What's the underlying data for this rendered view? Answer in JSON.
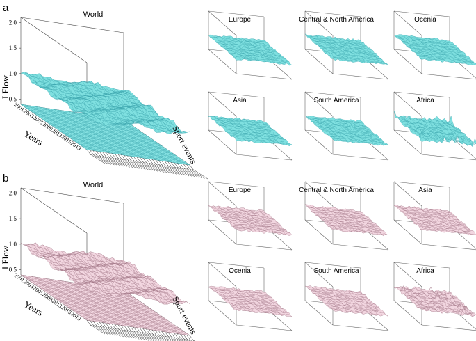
{
  "figure": {
    "panels": [
      {
        "letter": "a",
        "surface_color": "#7fe0e0",
        "mesh_color": "#3fa8b0",
        "large": {
          "title": "World",
          "ylabel": "I Flow",
          "xlabel": "Years",
          "zlabel": "Sport events",
          "yticks": [
            "2.0",
            "1.5",
            "1.0",
            "0.5"
          ],
          "xticks": [
            "2001",
            "2003",
            "2005",
            "2009",
            "2013",
            "2015",
            "2019"
          ]
        },
        "small": [
          "Europe",
          "Central & North America",
          "Ocenia",
          "Asia",
          "South America",
          "Africa"
        ]
      },
      {
        "letter": "b",
        "surface_color": "#f2d6e0",
        "mesh_color": "#a57a8a",
        "large": {
          "title": "World",
          "ylabel": "I Flow",
          "xlabel": "Years",
          "zlabel": "Sport events",
          "yticks": [
            "2.0",
            "1.5",
            "1.0",
            "0.5"
          ],
          "xticks": [
            "2001",
            "2003",
            "2005",
            "2009",
            "2013",
            "2015",
            "2019"
          ]
        },
        "small": [
          "Europe",
          "Central & North America",
          "Asia",
          "Ocenia",
          "South America",
          "Africa"
        ]
      }
    ]
  },
  "chart_data": [
    {
      "type": "surface",
      "panel": "a",
      "title": "World",
      "ylabel": "I Flow",
      "xlabel": "Years",
      "zlabel": "Sport events",
      "ylim": [
        0.5,
        2.0
      ],
      "x": [
        "2001",
        "2003",
        "2005",
        "2009",
        "2013",
        "2015",
        "2019"
      ],
      "level": 1.0
    },
    {
      "type": "surface",
      "panel": "a",
      "title": "Europe",
      "level": 1.0
    },
    {
      "type": "surface",
      "panel": "a",
      "title": "Central & North America",
      "level": 1.0
    },
    {
      "type": "surface",
      "panel": "a",
      "title": "Ocenia",
      "level": 1.0
    },
    {
      "type": "surface",
      "panel": "a",
      "title": "Asia",
      "level": 1.0
    },
    {
      "type": "surface",
      "panel": "a",
      "title": "South America",
      "level": 1.0
    },
    {
      "type": "surface",
      "panel": "a",
      "title": "Africa",
      "level": 1.0
    },
    {
      "type": "surface",
      "panel": "b",
      "title": "World",
      "ylabel": "I Flow",
      "xlabel": "Years",
      "zlabel": "Sport events",
      "ylim": [
        0.5,
        2.0
      ],
      "x": [
        "2001",
        "2003",
        "2005",
        "2009",
        "2013",
        "2015",
        "2019"
      ],
      "level": 1.0
    },
    {
      "type": "surface",
      "panel": "b",
      "title": "Europe",
      "level": 1.0
    },
    {
      "type": "surface",
      "panel": "b",
      "title": "Central & North America",
      "level": 1.0
    },
    {
      "type": "surface",
      "panel": "b",
      "title": "Asia",
      "level": 1.0
    },
    {
      "type": "surface",
      "panel": "b",
      "title": "Ocenia",
      "level": 1.0
    },
    {
      "type": "surface",
      "panel": "b",
      "title": "South America",
      "level": 1.0
    },
    {
      "type": "surface",
      "panel": "b",
      "title": "Africa",
      "level": 1.0
    }
  ]
}
